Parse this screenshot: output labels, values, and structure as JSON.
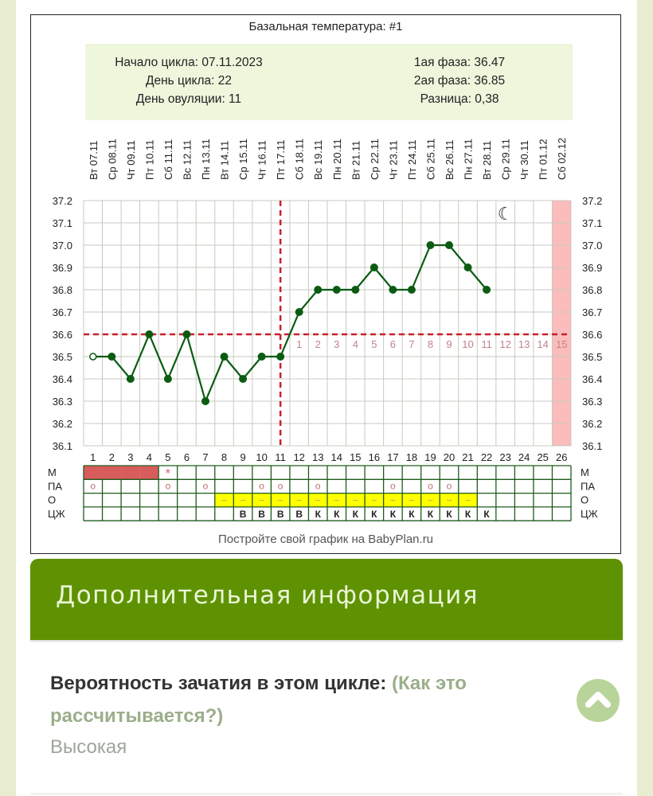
{
  "chart_data": {
    "type": "line",
    "title": "Базальная температура: #1",
    "summary": {
      "cycle_start": "Начало цикла: 07.11.2023",
      "cycle_day": "День цикла: 22",
      "ovulation_day": "День овуляции: 11",
      "phase1": "1ая фаза: 36.47",
      "phase2": "2ая фаза: 36.85",
      "difference": "Разница: 0,38"
    },
    "x": [
      1,
      2,
      3,
      4,
      5,
      6,
      7,
      8,
      9,
      10,
      11,
      12,
      13,
      14,
      15,
      16,
      17,
      18,
      19,
      20,
      21,
      22,
      23,
      24,
      25,
      26
    ],
    "dates": [
      "07.11",
      "08.11",
      "09.11",
      "10.11",
      "11.11",
      "12.11",
      "13.11",
      "14.11",
      "15.11",
      "16.11",
      "17.11",
      "18.11",
      "19.11",
      "20.11",
      "21.11",
      "22.11",
      "23.11",
      "24.11",
      "25.11",
      "26.11",
      "27.11",
      "28.11",
      "29.11",
      "30.11",
      "01.12",
      "02.12"
    ],
    "weekdays": [
      "Вт",
      "Ср",
      "Чт",
      "Пт",
      "Сб",
      "Вс",
      "Пн",
      "Вт",
      "Ср",
      "Чт",
      "Пт",
      "Сб",
      "Вс",
      "Пн",
      "Вт",
      "Ср",
      "Чт",
      "Пт",
      "Сб",
      "Вс",
      "Пн",
      "Вт",
      "Ср",
      "Чт",
      "Пт",
      "Сб"
    ],
    "series": [
      {
        "name": "Базальная температура",
        "color": "#0b5c12",
        "values": [
          36.5,
          36.5,
          36.4,
          36.6,
          36.4,
          36.6,
          36.3,
          36.5,
          36.4,
          36.5,
          36.5,
          36.7,
          36.8,
          36.8,
          36.8,
          36.9,
          36.8,
          36.8,
          37.0,
          37.0,
          36.9,
          36.8
        ]
      }
    ],
    "ylim": [
      36.1,
      37.2
    ],
    "yticks": [
      "37.2",
      "37.1",
      "37.0",
      "36.9",
      "36.8",
      "36.7",
      "36.6",
      "36.5",
      "36.4",
      "36.3",
      "36.2",
      "36.1"
    ],
    "coverline": 36.6,
    "ovulation_line_day": 11,
    "luteal_day_labels": [
      "1",
      "2",
      "3",
      "4",
      "5",
      "6",
      "7",
      "8",
      "9",
      "10",
      "11",
      "12",
      "13",
      "14",
      "15"
    ],
    "expected_period_day": 26,
    "grid": true,
    "rows": {
      "labels": [
        "М",
        "ПА",
        "О",
        "ЦЖ"
      ],
      "menstruation_days": [
        1,
        2,
        3,
        4
      ],
      "menstruation_star_day": 5,
      "star_symbol": "*",
      "intercourse_days": [
        1,
        5,
        7,
        10,
        11,
        13,
        17,
        19,
        20
      ],
      "intercourse_symbol": "o",
      "ovulation_test_days": [
        8,
        9,
        10,
        11,
        12,
        13,
        14,
        15,
        16,
        17,
        18,
        19,
        20,
        21
      ],
      "ovulation_test_symbol": "–",
      "cervical_fluid": {
        "9": "В",
        "10": "В",
        "11": "В",
        "12": "В",
        "13": "К",
        "14": "К",
        "15": "К",
        "16": "К",
        "17": "К",
        "18": "К",
        "19": "К",
        "20": "К",
        "21": "К",
        "22": "К"
      }
    },
    "moon_icon_day": 23,
    "colors": {
      "line": "#0b5c12",
      "coverline": "#c8202a",
      "period": "#d85c5c",
      "expected": "#fbbcbc",
      "ovulation_test": "#ffff00",
      "grid": "#c9c9c2",
      "row_grid": "#1d5c1d"
    }
  },
  "footer": {
    "link": "Постройте свой график на BabyPlan.ru"
  },
  "section": {
    "title": "Дополнительная информация"
  },
  "probability": {
    "label": "Вероятность зачатия в этом цикле: ",
    "link": "(Как это рассчитывается?)",
    "value": "Высокая"
  }
}
